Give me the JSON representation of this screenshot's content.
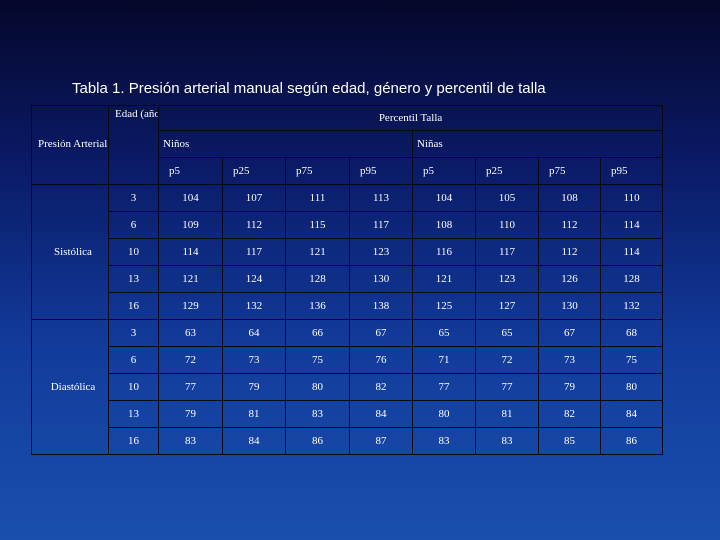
{
  "title": "Tabla 1. Presión arterial manual según edad, género y percentil de talla",
  "header": {
    "percentil_talla": "Percentil Talla",
    "presion_arterial": "Presión Arterial",
    "edad": "Edad (años)",
    "ninos": "Niños",
    "ninas": "Niñas",
    "percentiles": [
      "p5",
      "p25",
      "p75",
      "p95",
      "p5",
      "p25",
      "p75",
      "p95"
    ]
  },
  "groups": [
    {
      "label": "Sistólica",
      "rows": [
        {
          "age": "3",
          "values": [
            "104",
            "107",
            "111",
            "113",
            "104",
            "105",
            "108",
            "110"
          ]
        },
        {
          "age": "6",
          "values": [
            "109",
            "112",
            "115",
            "117",
            "108",
            "110",
            "112",
            "114"
          ]
        },
        {
          "age": "10",
          "values": [
            "114",
            "117",
            "121",
            "123",
            "116",
            "117",
            "112",
            "114"
          ]
        },
        {
          "age": "13",
          "values": [
            "121",
            "124",
            "128",
            "130",
            "121",
            "123",
            "126",
            "128"
          ]
        },
        {
          "age": "16",
          "values": [
            "129",
            "132",
            "136",
            "138",
            "125",
            "127",
            "130",
            "132"
          ]
        }
      ]
    },
    {
      "label": "Diastólica",
      "rows": [
        {
          "age": "3",
          "values": [
            "63",
            "64",
            "66",
            "67",
            "65",
            "65",
            "67",
            "68"
          ]
        },
        {
          "age": "6",
          "values": [
            "72",
            "73",
            "75",
            "76",
            "71",
            "72",
            "73",
            "75"
          ]
        },
        {
          "age": "10",
          "values": [
            "77",
            "79",
            "80",
            "82",
            "77",
            "77",
            "79",
            "80"
          ]
        },
        {
          "age": "13",
          "values": [
            "79",
            "81",
            "83",
            "84",
            "80",
            "81",
            "82",
            "84"
          ]
        },
        {
          "age": "16",
          "values": [
            "83",
            "84",
            "86",
            "87",
            "83",
            "83",
            "85",
            "86"
          ]
        }
      ]
    }
  ]
}
